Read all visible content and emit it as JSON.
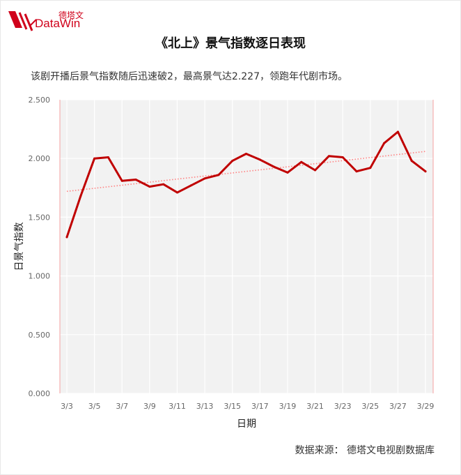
{
  "brand": {
    "cn": "德塔文",
    "en": "DataWin",
    "color": "#d0021b"
  },
  "title": "《北上》景气指数逐日表现",
  "subtitle": "该剧开播后景气指数随后迅速破2，最高景气达2.227，领跑年代剧市场。",
  "source": "数据来源：  德塔文电视剧数据库",
  "chart_data": {
    "type": "line",
    "xlabel": "日期",
    "ylabel": "日景气指数",
    "ylim": [
      0,
      2.5
    ],
    "y_ticks": [
      "0.000",
      "0.500",
      "1.000",
      "1.500",
      "2.000",
      "2.500"
    ],
    "x_tick_labels": [
      "3/3",
      "3/5",
      "3/7",
      "3/9",
      "3/11",
      "3/13",
      "3/15",
      "3/17",
      "3/19",
      "3/21",
      "3/23",
      "3/25",
      "3/27",
      "3/29"
    ],
    "x": [
      "3/3",
      "3/4",
      "3/5",
      "3/6",
      "3/7",
      "3/8",
      "3/9",
      "3/10",
      "3/11",
      "3/12",
      "3/13",
      "3/14",
      "3/15",
      "3/16",
      "3/17",
      "3/18",
      "3/19",
      "3/20",
      "3/21",
      "3/22",
      "3/23",
      "3/24",
      "3/25",
      "3/26",
      "3/27",
      "3/28",
      "3/29"
    ],
    "series": [
      {
        "values": [
          1.33,
          1.68,
          2.0,
          2.01,
          1.81,
          1.82,
          1.76,
          1.78,
          1.71,
          1.77,
          1.83,
          1.86,
          1.98,
          2.04,
          1.99,
          1.93,
          1.88,
          1.97,
          1.9,
          2.02,
          2.01,
          1.89,
          1.92,
          2.13,
          2.227,
          1.98,
          1.89
        ],
        "color": "#c00000"
      }
    ],
    "trendline": {
      "start": 1.72,
      "end": 2.06,
      "color": "#ff8080",
      "style": "dotted"
    },
    "grid": true,
    "plot_background": "#f2f2f2"
  }
}
